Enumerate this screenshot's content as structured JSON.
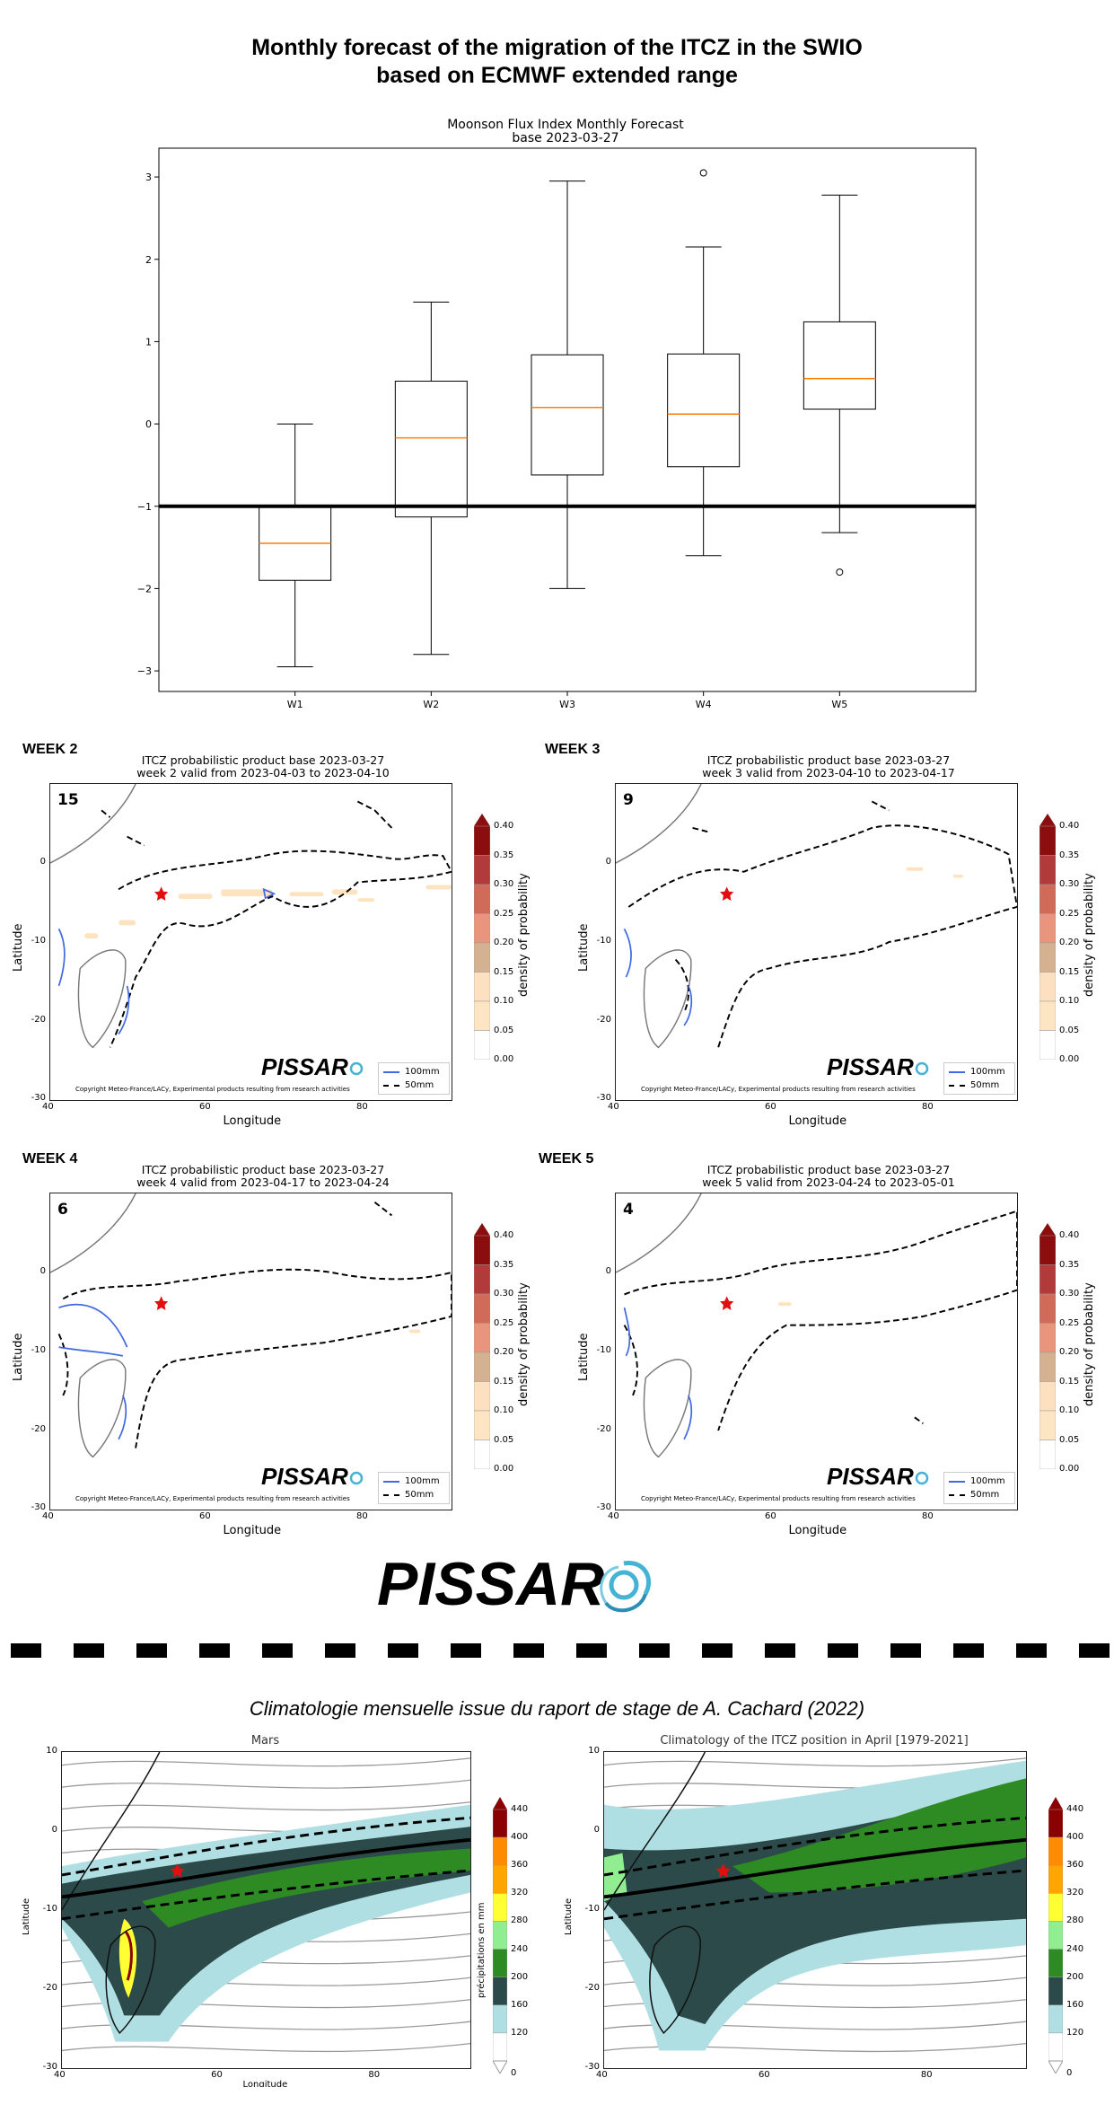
{
  "page_title": {
    "line1": "Monthly forecast of the migration of the ITCZ in the SWIO",
    "line2": "based on ECMWF extended range"
  },
  "chart_data": [
    {
      "type": "box",
      "title": "Moonson Flux Index Monthly Forecast",
      "subtitle": "base 2023-03-27",
      "categories": [
        "W1",
        "W2",
        "W3",
        "W4",
        "W5"
      ],
      "boxes": [
        {
          "whislo": -2.95,
          "q1": -1.9,
          "med": -1.45,
          "q3": -1.0,
          "whishi": 0.0,
          "fliers": []
        },
        {
          "whislo": -2.8,
          "q1": -1.13,
          "med": -0.17,
          "q3": 0.52,
          "whishi": 1.48,
          "fliers": []
        },
        {
          "whislo": -2.0,
          "q1": -0.62,
          "med": 0.2,
          "q3": 0.84,
          "whishi": 2.95,
          "fliers": []
        },
        {
          "whislo": -1.6,
          "q1": -0.52,
          "med": 0.12,
          "q3": 0.85,
          "whishi": 2.15,
          "fliers": [
            3.05
          ]
        },
        {
          "whislo": -1.32,
          "q1": 0.18,
          "med": 0.55,
          "q3": 1.24,
          "whishi": 2.78,
          "fliers": [
            -1.8
          ]
        }
      ],
      "hline": -1.0,
      "yticks": [
        -3,
        -2,
        -1,
        0,
        1,
        2,
        3
      ],
      "ylim": [
        -3.25,
        3.35
      ],
      "colors": {
        "median": "#ff7f0e",
        "box": "#000000",
        "hline": "#000000"
      }
    },
    {
      "type": "map",
      "label": "WEEK 2",
      "title": "ITCZ probabilistic product base 2023-03-27",
      "subtitle": "week 2 valid from 2023-04-03 to 2023-04-10",
      "count": "15",
      "xticks": [
        "40",
        "60",
        "80"
      ],
      "yticks": [
        "0",
        "-10",
        "-20",
        "-30"
      ],
      "xlabel": "Longitude",
      "ylabel": "Latitude",
      "legend": [
        "100mm",
        "50mm"
      ],
      "colorbar": {
        "label": "density of probability",
        "ticks": [
          "0.40",
          "0.35",
          "0.30",
          "0.25",
          "0.20",
          "0.15",
          "0.10",
          "0.05",
          "0.00"
        ]
      },
      "watermark": "PISSAR",
      "copyright": "Copyright Meteo-France/LACy, Experimental products resulting from research activities"
    },
    {
      "type": "map",
      "label": "WEEK 3",
      "title": "ITCZ probabilistic product base 2023-03-27",
      "subtitle": "week 3 valid from 2023-04-10 to 2023-04-17",
      "count": "9",
      "xticks": [
        "40",
        "60",
        "80"
      ],
      "yticks": [
        "0",
        "-10",
        "-20",
        "-30"
      ],
      "xlabel": "Longitude",
      "ylabel": "Latitude",
      "legend": [
        "100mm",
        "50mm"
      ],
      "colorbar": {
        "label": "density of probability",
        "ticks": [
          "0.40",
          "0.35",
          "0.30",
          "0.25",
          "0.20",
          "0.15",
          "0.10",
          "0.05",
          "0.00"
        ]
      },
      "watermark": "PISSAR",
      "copyright": "Copyright Meteo-France/LACy, Experimental products resulting from research activities"
    },
    {
      "type": "map",
      "label": "WEEK 4",
      "title": "ITCZ probabilistic product base 2023-03-27",
      "subtitle": "week 4 valid from 2023-04-17 to 2023-04-24",
      "count": "6",
      "xticks": [
        "40",
        "60",
        "80"
      ],
      "yticks": [
        "0",
        "-10",
        "-20",
        "-30"
      ],
      "xlabel": "Longitude",
      "ylabel": "Latitude",
      "legend": [
        "100mm",
        "50mm"
      ],
      "colorbar": {
        "label": "density of probability",
        "ticks": [
          "0.40",
          "0.35",
          "0.30",
          "0.25",
          "0.20",
          "0.15",
          "0.10",
          "0.05",
          "0.00"
        ]
      },
      "watermark": "PISSAR",
      "copyright": "Copyright Meteo-France/LACy, Experimental products resulting from research activities"
    },
    {
      "type": "map",
      "label": "WEEK 5",
      "title": "ITCZ probabilistic product base 2023-03-27",
      "subtitle": "week 5 valid from 2023-04-24 to 2023-05-01",
      "count": "4",
      "xticks": [
        "40",
        "60",
        "80"
      ],
      "yticks": [
        "0",
        "-10",
        "-20",
        "-30"
      ],
      "xlabel": "Longitude",
      "ylabel": "Latitude",
      "legend": [
        "100mm",
        "50mm"
      ],
      "colorbar": {
        "label": "density of probability",
        "ticks": [
          "0.40",
          "0.35",
          "0.30",
          "0.25",
          "0.20",
          "0.15",
          "0.10",
          "0.05",
          "0.00"
        ]
      },
      "watermark": "PISSAR",
      "copyright": "Copyright Meteo-France/LACy, Experimental products resulting from research activities"
    },
    {
      "type": "map",
      "title": "Mars",
      "xticks": [
        "40",
        "60",
        "80"
      ],
      "yticks": [
        "10",
        "0",
        "-10",
        "-20",
        "-30"
      ],
      "xlabel": "Longitude",
      "ylabel": "Latitude",
      "colorbar": {
        "label": "précipitations en mm",
        "ticks": [
          "440",
          "400",
          "360",
          "320",
          "280",
          "240",
          "200",
          "160",
          "120",
          "0"
        ]
      }
    },
    {
      "type": "map",
      "title": "Climatology of the ITCZ position in April [1979-2021]",
      "xticks": [
        "40",
        "60",
        "80"
      ],
      "yticks": [
        "10",
        "0",
        "-10",
        "-20",
        "-30"
      ],
      "ylabel": "Latitude",
      "colorbar": {
        "ticks": [
          "440",
          "400",
          "360",
          "320",
          "280",
          "240",
          "200",
          "160",
          "120",
          "0"
        ]
      }
    }
  ],
  "logo": {
    "text": "PISSAR"
  },
  "climatology_header": "Climatologie mensuelle issue du raport de stage de A. Cachard (2022)",
  "colors": {
    "prob_scale": [
      "#ffffff",
      "#ffffff",
      "#fde5c4",
      "#fde0bf",
      "#d4b291",
      "#e9947c",
      "#d06b5a",
      "#b13b3b",
      "#8b0d0d"
    ],
    "precip_scale": [
      "#ffffff",
      "#b0dfe3",
      "#2c4a4a",
      "#2e8b24",
      "#90ee90",
      "#ffff33",
      "#ffa500",
      "#ff8c00",
      "#8b0000"
    ],
    "contour_100mm": "#4169e1",
    "contour_50mm": "#000000",
    "star": "#e01010"
  }
}
